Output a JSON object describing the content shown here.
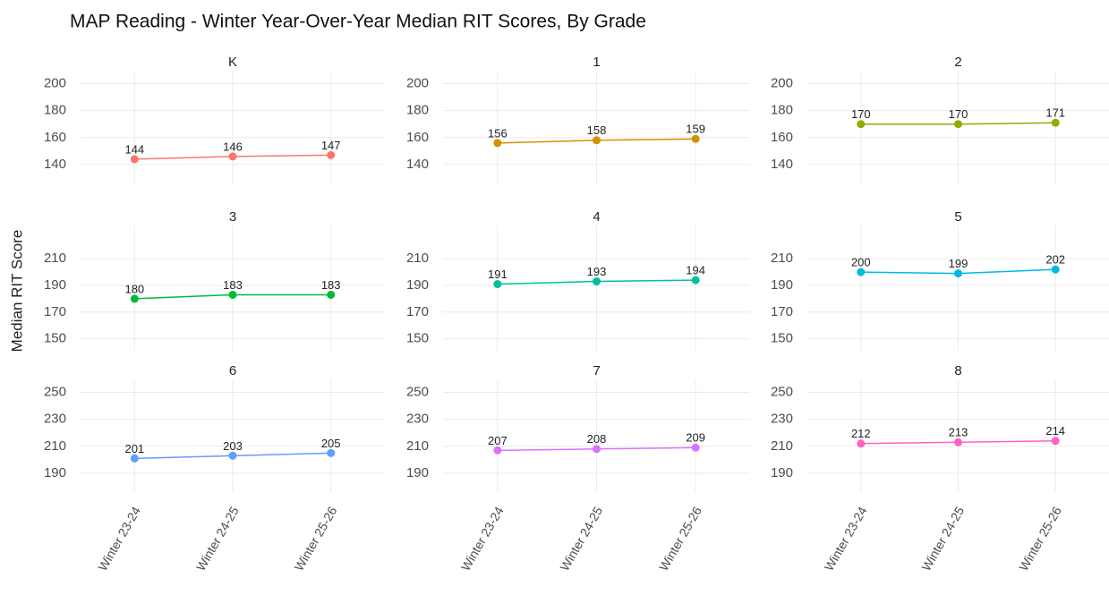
{
  "title": "MAP Reading - Winter Year-Over-Year Median RIT Scores, By Grade",
  "y_label": "Median RIT Score",
  "categories": [
    "Winter 23-24",
    "Winter 24-25",
    "Winter 25-26"
  ],
  "chart_data": [
    {
      "type": "line",
      "title": "K",
      "values": [
        144,
        146,
        147
      ],
      "color": "#F8766D",
      "ylim": [
        126,
        209
      ],
      "yticks": [
        140,
        160,
        180,
        200
      ]
    },
    {
      "type": "line",
      "title": "1",
      "values": [
        156,
        158,
        159
      ],
      "color": "#D39200",
      "ylim": [
        126,
        209
      ],
      "yticks": [
        140,
        160,
        180,
        200
      ]
    },
    {
      "type": "line",
      "title": "2",
      "values": [
        170,
        170,
        171
      ],
      "color": "#93AA00",
      "ylim": [
        126,
        209
      ],
      "yticks": [
        140,
        160,
        180,
        200
      ]
    },
    {
      "type": "line",
      "title": "3",
      "values": [
        180,
        183,
        183
      ],
      "color": "#00BA38",
      "ylim": [
        141,
        235
      ],
      "yticks": [
        150,
        170,
        190,
        210
      ]
    },
    {
      "type": "line",
      "title": "4",
      "values": [
        191,
        193,
        194
      ],
      "color": "#00C19F",
      "ylim": [
        141,
        235
      ],
      "yticks": [
        150,
        170,
        190,
        210
      ]
    },
    {
      "type": "line",
      "title": "5",
      "values": [
        200,
        199,
        202
      ],
      "color": "#00B9E3",
      "ylim": [
        141,
        235
      ],
      "yticks": [
        150,
        170,
        190,
        210
      ]
    },
    {
      "type": "line",
      "title": "6",
      "values": [
        201,
        203,
        205
      ],
      "color": "#619CFF",
      "ylim": [
        176,
        259
      ],
      "yticks": [
        190,
        210,
        230,
        250
      ]
    },
    {
      "type": "line",
      "title": "7",
      "values": [
        207,
        208,
        209
      ],
      "color": "#DB72FB",
      "ylim": [
        176,
        259
      ],
      "yticks": [
        190,
        210,
        230,
        250
      ]
    },
    {
      "type": "line",
      "title": "8",
      "values": [
        212,
        213,
        214
      ],
      "color": "#FF61C3",
      "ylim": [
        176,
        259
      ],
      "yticks": [
        190,
        210,
        230,
        250
      ]
    }
  ]
}
